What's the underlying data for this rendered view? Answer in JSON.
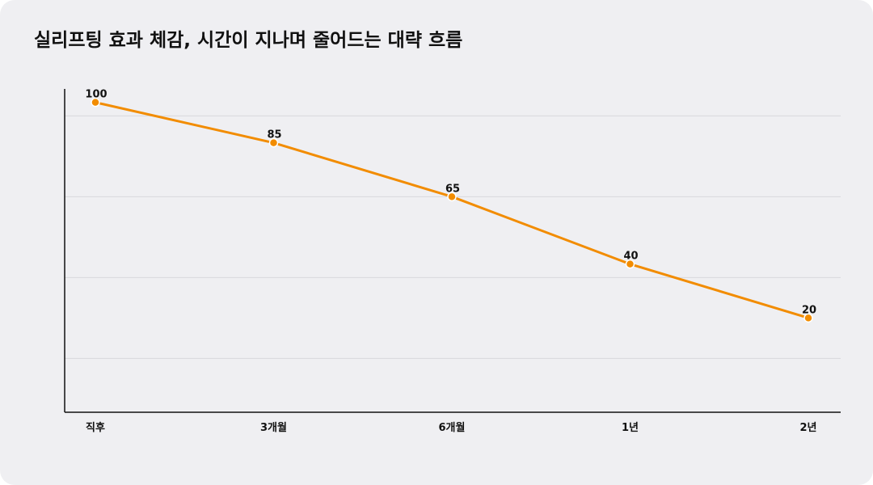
{
  "colors": {
    "background": "#efeff2",
    "line": "#f28c00",
    "point": "#f28c00",
    "grid": "#d8d8dc",
    "axis": "#111111"
  },
  "chart_data": {
    "type": "line",
    "title": "실리프팅 효과 체감, 시간이 지나며 줄어드는 대략 흐름",
    "xlabel": "",
    "ylabel": "",
    "categories": [
      "직후",
      "3개월",
      "6개월",
      "1년",
      "2년"
    ],
    "series": [
      {
        "values": [
          100,
          85,
          65,
          40,
          20
        ]
      }
    ],
    "ylim": [
      -15,
      105
    ],
    "y_grid": [
      5,
      35,
      65,
      95
    ],
    "grid": true,
    "y_tick_labels": false,
    "data_labels": true
  }
}
